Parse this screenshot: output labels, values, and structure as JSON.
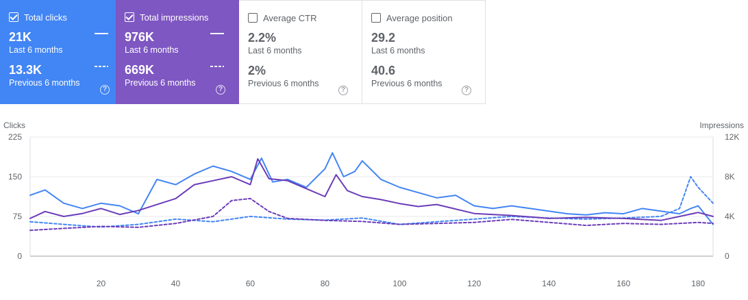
{
  "cards": [
    {
      "key": "clicks",
      "label": "Total clicks",
      "checked": true,
      "value1": "21K",
      "sub1": "Last 6 months",
      "value2": "13.3K",
      "sub2": "Previous 6 months",
      "color": "#4285f4"
    },
    {
      "key": "impr",
      "label": "Total impressions",
      "checked": true,
      "value1": "976K",
      "sub1": "Last 6 months",
      "value2": "669K",
      "sub2": "Previous 6 months",
      "color": "#7e57c2"
    },
    {
      "key": "ctr",
      "label": "Average CTR",
      "checked": false,
      "value1": "2.2%",
      "sub1": "Last 6 months",
      "value2": "2%",
      "sub2": "Previous 6 months"
    },
    {
      "key": "pos",
      "label": "Average position",
      "checked": false,
      "value1": "29.2",
      "sub1": "Last 6 months",
      "value2": "40.6",
      "sub2": "Previous 6 months"
    }
  ],
  "help_glyph": "?",
  "chart_data": {
    "type": "line",
    "y_left_label": "Clicks",
    "y_right_label": "Impressions",
    "y_left_ticks": [
      "0",
      "75",
      "150",
      "225"
    ],
    "y_right_ticks": [
      "0",
      "4K",
      "8K",
      "12K"
    ],
    "x_ticks": [
      "20",
      "40",
      "60",
      "80",
      "100",
      "120",
      "140",
      "160",
      "180"
    ],
    "xlim": [
      1,
      184
    ],
    "ylim_left": [
      0,
      225
    ],
    "ylim_right": [
      0,
      12000
    ],
    "series": [
      {
        "axis": "left",
        "style": "solid",
        "color": "#4285f4",
        "x": [
          1,
          5,
          10,
          15,
          20,
          25,
          30,
          35,
          40,
          45,
          50,
          55,
          60,
          63,
          66,
          70,
          75,
          80,
          82,
          85,
          88,
          90,
          95,
          100,
          105,
          110,
          115,
          120,
          125,
          130,
          135,
          140,
          145,
          150,
          155,
          160,
          165,
          170,
          175,
          178,
          180,
          184
        ],
        "y": [
          115,
          125,
          100,
          90,
          100,
          95,
          80,
          145,
          135,
          155,
          170,
          160,
          145,
          185,
          140,
          145,
          130,
          165,
          195,
          150,
          160,
          180,
          145,
          130,
          120,
          110,
          115,
          95,
          90,
          95,
          90,
          85,
          80,
          78,
          82,
          80,
          90,
          85,
          80,
          90,
          95,
          60
        ]
      },
      {
        "axis": "left",
        "style": "dashed",
        "color": "#4285f4",
        "x": [
          1,
          10,
          20,
          30,
          40,
          50,
          60,
          70,
          80,
          90,
          100,
          110,
          120,
          130,
          140,
          150,
          160,
          170,
          175,
          178,
          180,
          184
        ],
        "y": [
          65,
          60,
          55,
          60,
          70,
          65,
          75,
          70,
          68,
          72,
          60,
          65,
          70,
          75,
          72,
          70,
          72,
          75,
          90,
          150,
          130,
          100
        ]
      },
      {
        "axis": "right",
        "style": "solid",
        "color": "#6a3bb8",
        "x": [
          1,
          5,
          10,
          15,
          20,
          25,
          30,
          35,
          40,
          45,
          50,
          55,
          60,
          62,
          65,
          70,
          75,
          80,
          83,
          86,
          90,
          95,
          100,
          105,
          110,
          120,
          130,
          140,
          150,
          160,
          170,
          180,
          184
        ],
        "y": [
          3800,
          4500,
          4000,
          4300,
          4800,
          4200,
          4600,
          5200,
          5800,
          7200,
          7600,
          8000,
          7200,
          9800,
          7800,
          7600,
          6800,
          6000,
          8200,
          6600,
          6000,
          5700,
          5300,
          5000,
          5200,
          4300,
          4100,
          3800,
          3900,
          3800,
          3600,
          4400,
          4000
        ]
      },
      {
        "axis": "right",
        "style": "dashed",
        "color": "#6a3bb8",
        "x": [
          1,
          10,
          20,
          30,
          40,
          50,
          55,
          60,
          65,
          70,
          80,
          90,
          100,
          110,
          120,
          130,
          140,
          150,
          160,
          170,
          180,
          184
        ],
        "y": [
          2600,
          2800,
          3000,
          2900,
          3300,
          4000,
          5600,
          5800,
          4500,
          3800,
          3600,
          3500,
          3200,
          3300,
          3400,
          3700,
          3400,
          3100,
          3300,
          3200,
          3400,
          3300
        ]
      }
    ]
  }
}
